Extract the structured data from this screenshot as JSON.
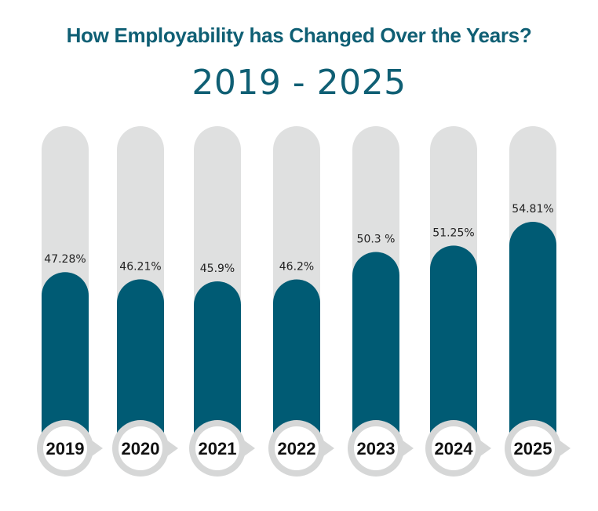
{
  "chart_data": {
    "type": "bar",
    "title": "How Employability has Changed Over the Years?",
    "subtitle": "2019 - 2025",
    "categories": [
      "2019",
      "2020",
      "2021",
      "2022",
      "2023",
      "2024",
      "2025"
    ],
    "values": [
      47.28,
      46.21,
      45.9,
      46.2,
      50.3,
      51.25,
      54.81
    ],
    "value_labels": [
      "47.28%",
      "46.21%",
      "45.9%",
      "46.2%",
      "50.3 %",
      "51.25%",
      "54.81%"
    ],
    "xlabel": "",
    "ylabel": "",
    "grid": false,
    "legend": "none"
  },
  "colors": {
    "bar": "#005b74",
    "track": "#dfe0e0",
    "title": "#0f5f74",
    "circle_ring": "#d6d7d7",
    "circle_fill": "#ffffff"
  }
}
